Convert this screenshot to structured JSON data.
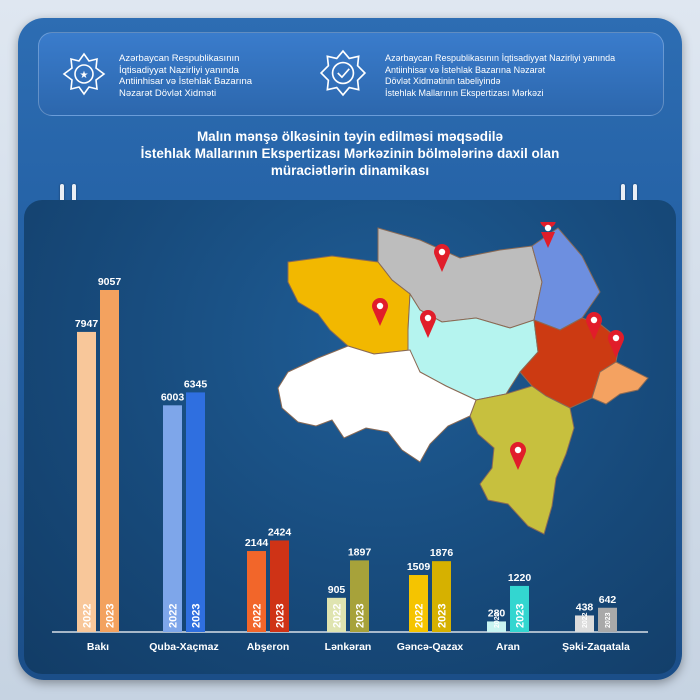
{
  "header": {
    "left_text": "Azərbaycan Respublikasının\nİqtisadiyyat Nazirliyi yanında\nAntiinhisar və İstehlak Bazarına\nNəzarət Dövlət Xidməti",
    "right_text": "Azərbaycan Respublikasının İqtisadiyyat Nazirliyi yanında\nAntiinhisar və İstehlak Bazarına Nəzarət\nDövlət Xidmətinin tabeliyində\nİstehlak Mallarının Ekspertizası Mərkəzi",
    "left_logo_icon": "state-service-emblem-icon",
    "right_logo_icon": "expertise-center-emblem-icon"
  },
  "title_lines": [
    "Malın mənşə ölkəsinin təyin edilməsi məqsədilə",
    "İstehlak Mallarının Ekspertizası Mərkəzinin bölmələrinə daxil olan",
    "müraciətlərin dinamikası"
  ],
  "chart_data": {
    "type": "bar",
    "categories": [
      "Bakı",
      "Quba-Xaçmaz",
      "Abşeron",
      "Lənkəran",
      "Gəncə-Qazax",
      "Aran",
      "Şəki-Zaqatala"
    ],
    "series": [
      {
        "name": "2022",
        "values": [
          7947,
          6003,
          2144,
          905,
          1509,
          280,
          438
        ]
      },
      {
        "name": "2023",
        "values": [
          9057,
          6345,
          2424,
          1897,
          1876,
          1220,
          642
        ]
      }
    ],
    "colors": {
      "2022": [
        "#f8c79a",
        "#7ea6ea",
        "#f2662a",
        "#dfe4b0",
        "#f5c400",
        "#c8f4f1",
        "#dcdcdc"
      ],
      "2023": [
        "#f3a25f",
        "#2f6fe0",
        "#cf3316",
        "#a7a23a",
        "#d6b100",
        "#33d6d0",
        "#a9a9a9"
      ]
    },
    "ylim": [
      0,
      9057
    ],
    "grid": false,
    "legend": "year printed inside each bar"
  },
  "map": {
    "region_colors": {
      "Bakı": "#f4a261",
      "Quba-Xaçmaz": "#6d8fe0",
      "Abşeron": "#cc3a12",
      "Lənkəran": "#c7c03e",
      "Gəncə-Qazax": "#f2b800",
      "Aran": "#b5f4ef",
      "Şəki-Zaqatala": "#bdbdbd",
      "Naxçıvan-like-west": "#ffffff"
    },
    "marker_icon": "map-pin-icon"
  }
}
